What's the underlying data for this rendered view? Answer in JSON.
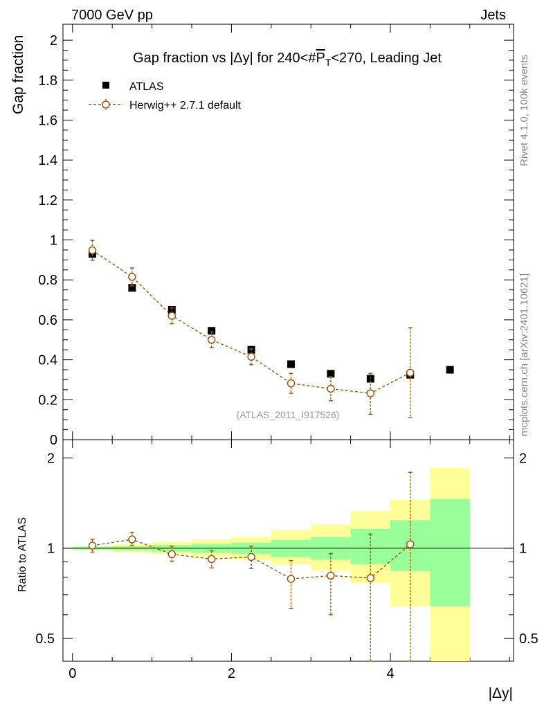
{
  "header": {
    "left": "7000 GeV pp",
    "right": "Jets"
  },
  "side_labels": {
    "rivet": "Rivet 4.1.0,  100k events",
    "mcplots": "mcplots.cern.ch [arXiv:2401.10621]"
  },
  "chart_data": [
    {
      "type": "scatter",
      "title": "Gap fraction vs |Δy| for 240<#P̅T<270, Leading Jet",
      "title_parts": {
        "prefix": "Gap fraction vs |Δy| for 240<#",
        "p": "P",
        "sub": "T",
        "suffix": "<270, Leading Jet"
      },
      "ylabel": "Gap fraction",
      "xlabel": "|Δy|",
      "xlim": [
        -0.12,
        5.55
      ],
      "ylim": [
        0,
        2.08
      ],
      "x_ticks": [
        "0",
        "2",
        "4"
      ],
      "x_tick_values": [
        0,
        2,
        4
      ],
      "y_ticks": [
        "0",
        "0.2",
        "0.4",
        "0.6",
        "0.8",
        "1",
        "1.2",
        "1.4",
        "1.6",
        "1.8",
        "2"
      ],
      "y_tick_values": [
        0,
        0.2,
        0.4,
        0.6,
        0.8,
        1.0,
        1.2,
        1.4,
        1.6,
        1.8,
        2.0
      ],
      "watermark": "(ATLAS_2011_I917526)",
      "legend_position": "top-left",
      "series": [
        {
          "name": "ATLAS",
          "style": "marker-square",
          "color": "#000000",
          "x": [
            0.25,
            0.75,
            1.25,
            1.75,
            2.25,
            2.75,
            3.25,
            3.75,
            4.25,
            4.75
          ],
          "y": [
            0.93,
            0.76,
            0.65,
            0.545,
            0.45,
            0.378,
            0.33,
            0.305,
            0.325,
            0.35
          ]
        },
        {
          "name": "Herwig++ 2.7.1 default",
          "style": "open-circle-dashed",
          "color": "#a0550a",
          "x": [
            0.25,
            0.75,
            1.25,
            1.75,
            2.25,
            2.75,
            3.25,
            3.75,
            4.25
          ],
          "y": [
            0.948,
            0.815,
            0.62,
            0.5,
            0.415,
            0.282,
            0.255,
            0.232,
            0.335
          ],
          "err_low": [
            0.05,
            0.045,
            0.04,
            0.04,
            0.04,
            0.05,
            0.06,
            0.105,
            0.225
          ],
          "err_high": [
            0.05,
            0.045,
            0.04,
            0.04,
            0.04,
            0.05,
            0.06,
            0.1,
            0.225
          ]
        }
      ]
    },
    {
      "type": "scatter",
      "ylabel": "Ratio to ATLAS",
      "yscale": "log",
      "xlim": [
        -0.12,
        5.55
      ],
      "ylim": [
        0.42,
        2.3
      ],
      "y_ticks": [
        "0.5",
        "1",
        "2"
      ],
      "y_tick_values": [
        0.5,
        1,
        2
      ],
      "reference_line": 1.0,
      "bins": {
        "x_low": [
          0,
          0.5,
          1,
          1.5,
          2,
          2.5,
          3,
          3.5,
          4,
          4.5
        ],
        "x_high": [
          0.5,
          1,
          1.5,
          2,
          2.5,
          3,
          3.5,
          4,
          4.5,
          5
        ],
        "green_low": [
          0.99,
          0.985,
          0.975,
          0.965,
          0.955,
          0.935,
          0.915,
          0.885,
          0.84,
          0.64
        ],
        "green_high": [
          1.01,
          1.015,
          1.025,
          1.035,
          1.045,
          1.065,
          1.09,
          1.16,
          1.24,
          1.46
        ],
        "yellow_low": [
          0.985,
          0.97,
          0.955,
          0.935,
          0.915,
          0.88,
          0.84,
          0.765,
          0.64,
          0.35
        ],
        "yellow_high": [
          1.015,
          1.03,
          1.05,
          1.07,
          1.09,
          1.15,
          1.2,
          1.33,
          1.45,
          1.85
        ],
        "green_color": "#99ff99",
        "yellow_color": "#ffff99"
      },
      "series": [
        {
          "name": "Herwig++ 2.7.1 default",
          "color": "#a0550a",
          "x": [
            0.25,
            0.75,
            1.25,
            1.75,
            2.25,
            2.75,
            3.25,
            3.75,
            4.25
          ],
          "y": [
            1.02,
            1.07,
            0.955,
            0.92,
            0.935,
            0.79,
            0.81,
            0.795,
            1.03
          ],
          "err_low": [
            0.05,
            0.05,
            0.05,
            0.06,
            0.08,
            0.16,
            0.21,
            0.43,
            0.64
          ],
          "err_high": [
            0.05,
            0.06,
            0.06,
            0.06,
            0.08,
            0.12,
            0.15,
            0.32,
            0.76
          ]
        }
      ]
    }
  ]
}
